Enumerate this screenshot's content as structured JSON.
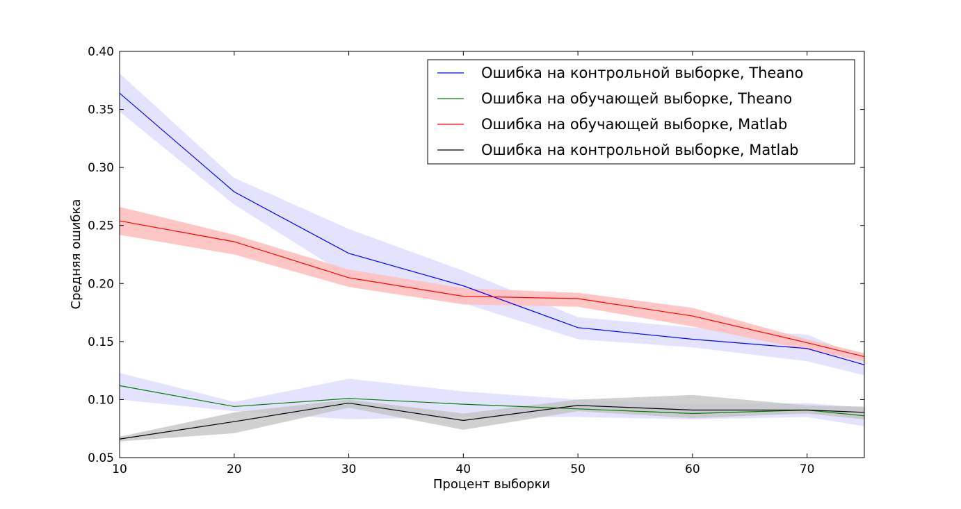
{
  "chart_data": {
    "type": "line",
    "title": "",
    "xlabel": "Процент выборки",
    "ylabel": "Средняя ошибка",
    "xlim": [
      10,
      75
    ],
    "ylim": [
      0.05,
      0.4
    ],
    "xticks": [
      10,
      20,
      30,
      40,
      50,
      60,
      70
    ],
    "yticks": [
      0.05,
      0.1,
      0.15,
      0.2,
      0.25,
      0.3,
      0.35,
      0.4
    ],
    "x": [
      10,
      20,
      30,
      40,
      50,
      60,
      70,
      75
    ],
    "grid": false,
    "legend_position": "top-right",
    "series": [
      {
        "name": "Ошибка на контрольной выборке, Theano",
        "color": "#0000ff",
        "band_color": "#e0e0ff",
        "values": [
          0.364,
          0.279,
          0.226,
          0.198,
          0.162,
          0.152,
          0.144,
          0.13
        ],
        "lower": [
          0.348,
          0.268,
          0.206,
          0.183,
          0.152,
          0.145,
          0.133,
          0.121
        ],
        "upper": [
          0.381,
          0.291,
          0.247,
          0.211,
          0.171,
          0.162,
          0.156,
          0.136
        ]
      },
      {
        "name": "Ошибка на обучающей выборке, Theano",
        "color": "#008000",
        "band_color": "#e0e0ff",
        "values": [
          0.112,
          0.094,
          0.101,
          0.096,
          0.092,
          0.088,
          0.091,
          0.086
        ],
        "lower": [
          0.1,
          0.09,
          0.083,
          0.085,
          0.085,
          0.083,
          0.085,
          0.077
        ],
        "upper": [
          0.123,
          0.098,
          0.118,
          0.107,
          0.1,
          0.096,
          0.097,
          0.093
        ]
      },
      {
        "name": "Ошибка на обучающей выборке, Matlab",
        "color": "#ff0000",
        "band_color": "#ffc0c0",
        "values": [
          0.254,
          0.236,
          0.205,
          0.189,
          0.187,
          0.172,
          0.149,
          0.137
        ],
        "lower": [
          0.242,
          0.225,
          0.197,
          0.182,
          0.18,
          0.163,
          0.143,
          0.133
        ],
        "upper": [
          0.266,
          0.242,
          0.212,
          0.196,
          0.192,
          0.179,
          0.152,
          0.14
        ]
      },
      {
        "name": "Ошибка на контрольной выборке, Matlab",
        "color": "#000000",
        "band_color": "#c0c0c0",
        "values": [
          0.066,
          0.081,
          0.097,
          0.082,
          0.095,
          0.091,
          0.091,
          0.089
        ],
        "lower": [
          0.064,
          0.071,
          0.093,
          0.074,
          0.09,
          0.084,
          0.088,
          0.083
        ],
        "upper": [
          0.068,
          0.089,
          0.1,
          0.088,
          0.1,
          0.104,
          0.095,
          0.094
        ]
      }
    ]
  }
}
